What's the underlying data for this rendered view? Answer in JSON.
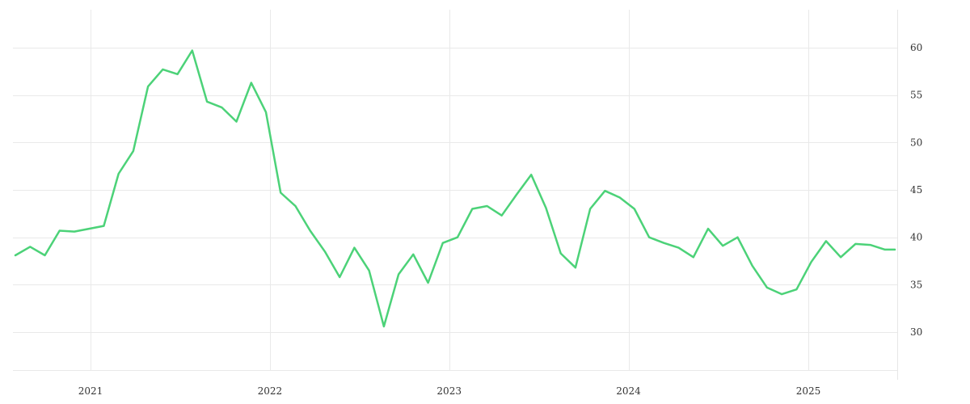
{
  "chart_data": {
    "type": "line",
    "title": "",
    "xlabel": "",
    "ylabel": "",
    "x_tick_labels": [
      "2021",
      "2022",
      "2023",
      "2024",
      "2025"
    ],
    "y_tick_labels": [
      "30",
      "35",
      "40",
      "45",
      "50",
      "55",
      "60"
    ],
    "y_ticks": [
      30,
      35,
      40,
      45,
      50,
      55,
      60
    ],
    "xlim": [
      "2020-07-27",
      "2025-07-01"
    ],
    "ylim": [
      26,
      64
    ],
    "y_axis_position": "right",
    "grid": true,
    "legend": "none",
    "colors": {
      "line": "#4cd278",
      "grid": "#e9e9e9",
      "text": "#333333"
    },
    "series": [
      {
        "name": "",
        "x": [
          "2020-08-01",
          "2020-08-31",
          "2020-09-30",
          "2020-10-30",
          "2020-11-29",
          "2021-01-28",
          "2021-02-27",
          "2021-03-29",
          "2021-04-28",
          "2021-05-28",
          "2021-06-27",
          "2021-07-27",
          "2021-08-26",
          "2021-09-25",
          "2021-10-25",
          "2021-11-24",
          "2021-12-24",
          "2022-01-23",
          "2022-02-22",
          "2022-03-24",
          "2022-04-23",
          "2022-05-23",
          "2022-06-22",
          "2022-07-22",
          "2022-08-21",
          "2022-09-20",
          "2022-10-20",
          "2022-11-19",
          "2022-12-19",
          "2023-01-18",
          "2023-02-17",
          "2023-03-19",
          "2023-04-18",
          "2023-05-18",
          "2023-06-17",
          "2023-07-17",
          "2023-08-16",
          "2023-09-15",
          "2023-10-15",
          "2023-11-14",
          "2023-12-14",
          "2024-01-13",
          "2024-02-12",
          "2024-03-13",
          "2024-04-12",
          "2024-05-12",
          "2024-06-11",
          "2024-07-11",
          "2024-08-10",
          "2024-09-09",
          "2024-10-09",
          "2024-11-08",
          "2024-12-08",
          "2025-01-07",
          "2025-02-06",
          "2025-03-08",
          "2025-04-07",
          "2025-05-07",
          "2025-06-06",
          "2025-06-26"
        ],
        "y": [
          38.1,
          39.0,
          38.1,
          40.7,
          40.6,
          41.2,
          46.7,
          49.1,
          55.9,
          57.7,
          57.2,
          59.7,
          54.3,
          53.7,
          52.2,
          56.3,
          53.2,
          44.7,
          43.3,
          40.7,
          38.5,
          35.8,
          38.9,
          36.5,
          30.6,
          36.1,
          38.2,
          35.2,
          39.4,
          40.0,
          43.0,
          43.3,
          42.3,
          44.5,
          46.6,
          43.1,
          38.3,
          36.8,
          43.0,
          44.9,
          44.2,
          43.0,
          40.0,
          39.4,
          38.9,
          37.9,
          40.9,
          39.1,
          40.0,
          37.0,
          34.7,
          34.0,
          34.5,
          37.4,
          39.6,
          37.9,
          39.3,
          39.2,
          38.7,
          38.7
        ]
      }
    ]
  }
}
